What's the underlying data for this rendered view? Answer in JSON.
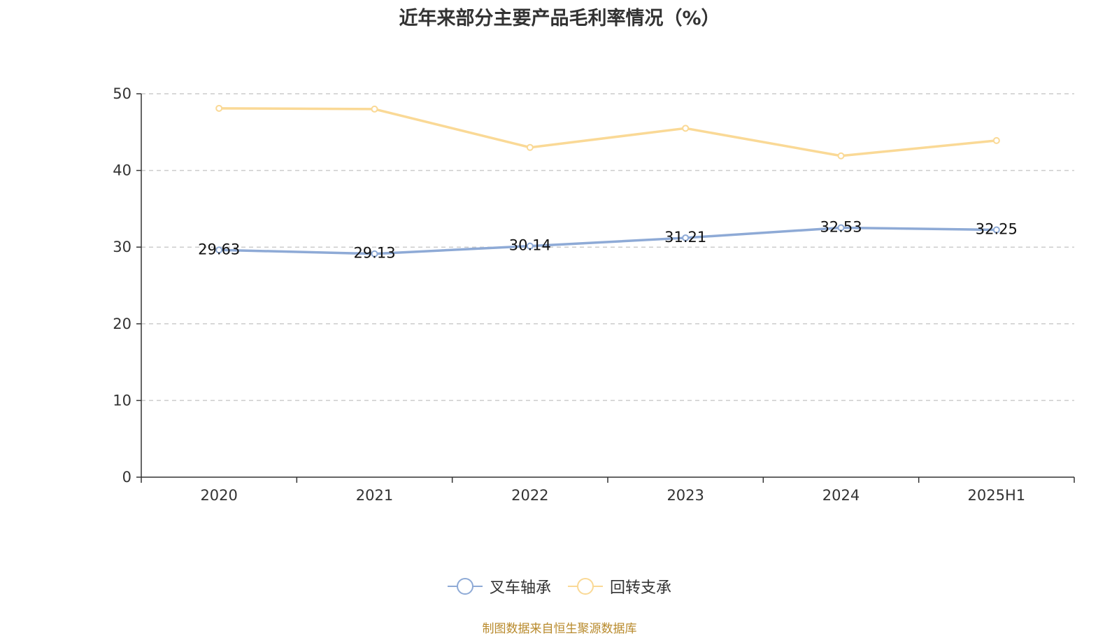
{
  "chart_data": {
    "type": "line",
    "title": "近年来部分主要产品毛利率情况（%）",
    "categories": [
      "2020",
      "2021",
      "2022",
      "2023",
      "2024",
      "2025H1"
    ],
    "ylim": [
      0,
      50
    ],
    "yticks": [
      0,
      10,
      20,
      30,
      40,
      50
    ],
    "grid": true,
    "legend_position": "bottom",
    "series": [
      {
        "name": "叉车轴承",
        "values": [
          29.63,
          29.13,
          30.14,
          31.21,
          32.53,
          32.25
        ],
        "color": "#8eaad6",
        "labels_shown": true
      },
      {
        "name": "回转支承",
        "values": [
          48.1,
          48.0,
          43.0,
          45.5,
          41.9,
          43.9
        ],
        "color": "#fad996",
        "labels_shown": false
      }
    ]
  },
  "source_note": "制图数据来自恒生聚源数据库"
}
